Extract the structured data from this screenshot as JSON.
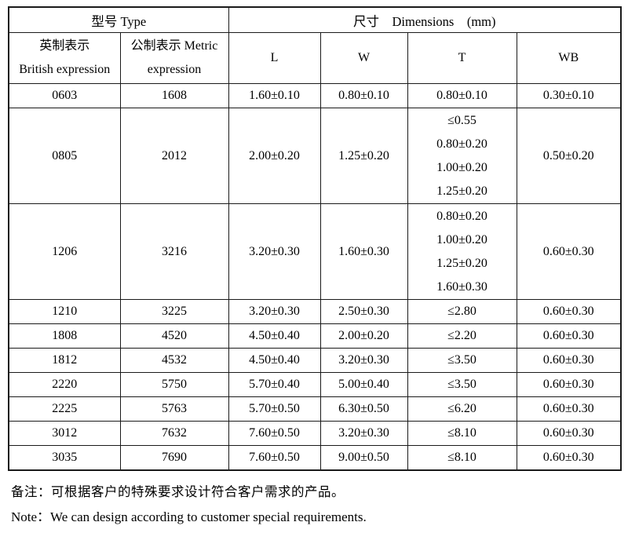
{
  "table": {
    "header": {
      "type_group": "型号 Type",
      "dimensions_group": "尺寸    Dimensions    (mm)",
      "british_col_line1": "英制表示",
      "british_col_line2": "British expression",
      "metric_col_line1": "公制表示 Metric",
      "metric_col_line2": "expression",
      "col_l": "L",
      "col_w": "W",
      "col_t": "T",
      "col_wb": "WB"
    },
    "rows": [
      {
        "british": "0603",
        "metric": "1608",
        "l": "1.60±0.10",
        "w": "0.80±0.10",
        "t": [
          "0.80±0.10"
        ],
        "wb": "0.30±0.10"
      },
      {
        "british": "0805",
        "metric": "2012",
        "l": "2.00±0.20",
        "w": "1.25±0.20",
        "t": [
          "≤0.55",
          "0.80±0.20",
          "1.00±0.20",
          "1.25±0.20"
        ],
        "wb": "0.50±0.20"
      },
      {
        "british": "1206",
        "metric": "3216",
        "l": "3.20±0.30",
        "w": "1.60±0.30",
        "t": [
          "0.80±0.20",
          "1.00±0.20",
          "1.25±0.20",
          "1.60±0.30"
        ],
        "wb": "0.60±0.30"
      },
      {
        "british": "1210",
        "metric": "3225",
        "l": "3.20±0.30",
        "w": "2.50±0.30",
        "t": [
          "≤2.80"
        ],
        "wb": "0.60±0.30"
      },
      {
        "british": "1808",
        "metric": "4520",
        "l": "4.50±0.40",
        "w": "2.00±0.20",
        "t": [
          "≤2.20"
        ],
        "wb": "0.60±0.30"
      },
      {
        "british": "1812",
        "metric": "4532",
        "l": "4.50±0.40",
        "w": "3.20±0.30",
        "t": [
          "≤3.50"
        ],
        "wb": "0.60±0.30"
      },
      {
        "british": "2220",
        "metric": "5750",
        "l": "5.70±0.40",
        "w": "5.00±0.40",
        "t": [
          "≤3.50"
        ],
        "wb": "0.60±0.30"
      },
      {
        "british": "2225",
        "metric": "5763",
        "l": "5.70±0.50",
        "w": "6.30±0.50",
        "t": [
          "≤6.20"
        ],
        "wb": "0.60±0.30"
      },
      {
        "british": "3012",
        "metric": "7632",
        "l": "7.60±0.50",
        "w": "3.20±0.30",
        "t": [
          "≤8.10"
        ],
        "wb": "0.60±0.30"
      },
      {
        "british": "3035",
        "metric": "7690",
        "l": "7.60±0.50",
        "w": "9.00±0.50",
        "t": [
          "≤8.10"
        ],
        "wb": "0.60±0.30"
      }
    ]
  },
  "notes": {
    "cn": "备注：可根据客户的特殊要求设计符合客户需求的产品。",
    "en": "Note：We can design according to customer special requirements."
  },
  "colors": {
    "border": "#1a1a1a",
    "text": "#000000",
    "background": "#ffffff"
  }
}
